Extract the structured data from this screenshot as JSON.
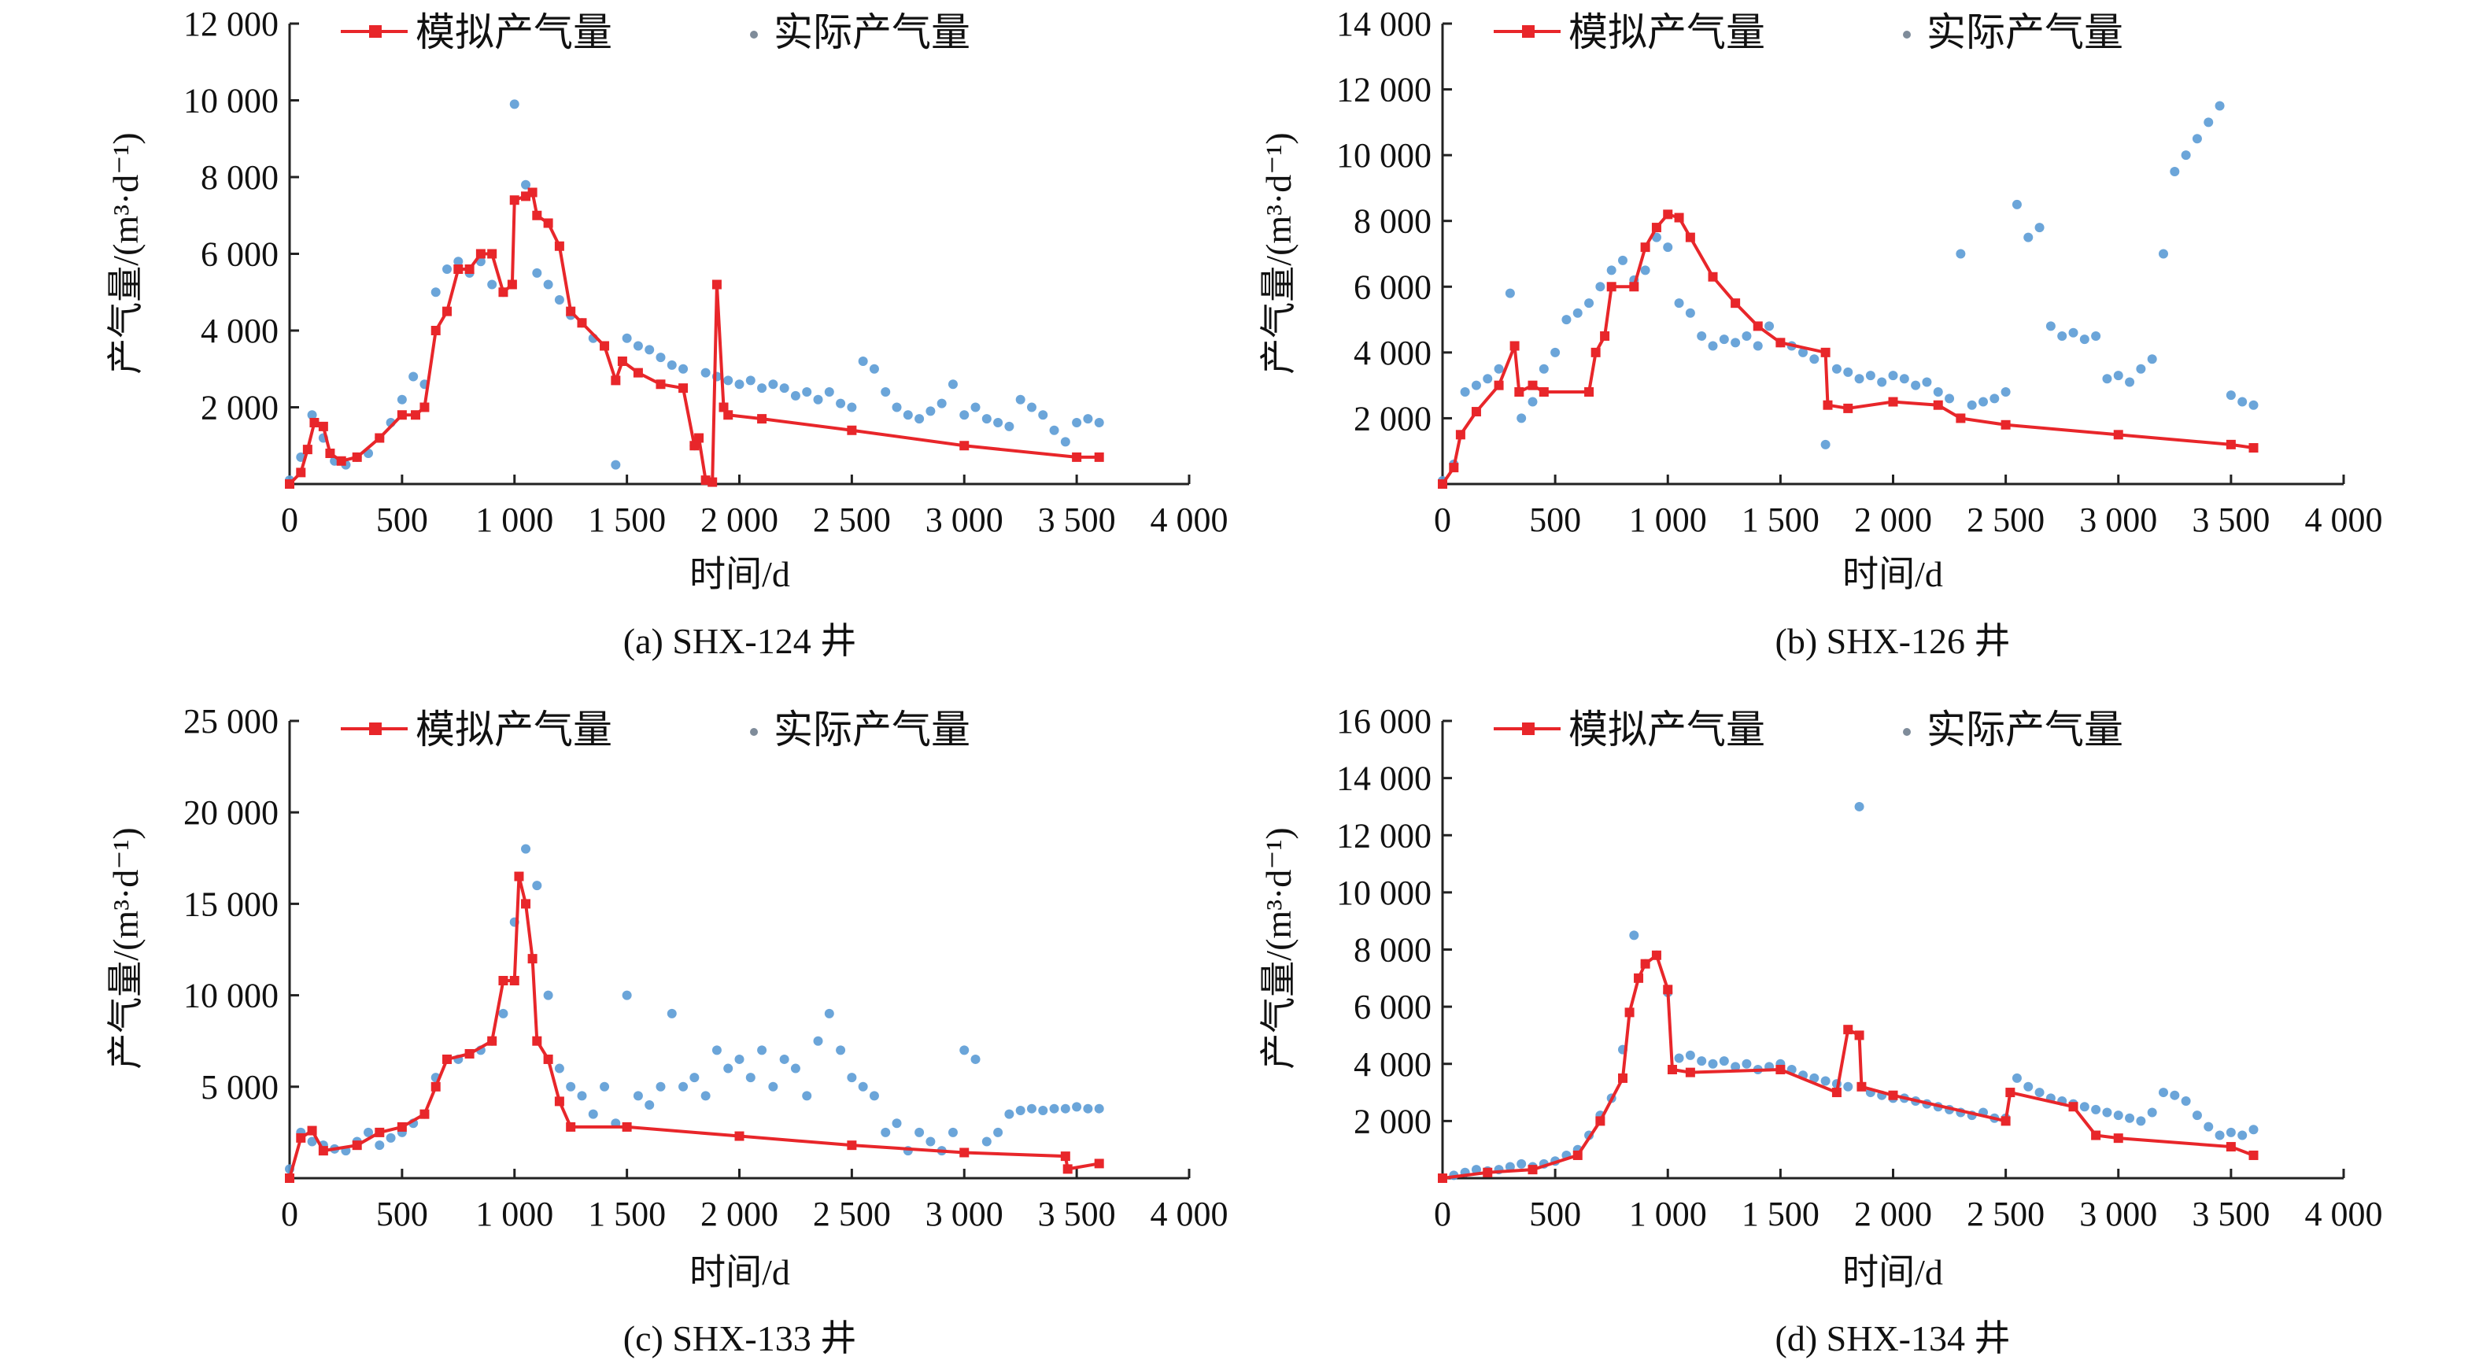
{
  "colors": {
    "simulated": "#e8262a",
    "actual": "#5b9bd5",
    "axis": "#222222"
  },
  "legend": {
    "simulated": "模拟产气量",
    "actual": "实际产气量"
  },
  "chart_data": [
    {
      "type": "line",
      "title": "(a) SHX-124 井",
      "xlabel": "时间/d",
      "ylabel": "产气量/(m³·d⁻¹)",
      "xlim": [
        0,
        4000
      ],
      "ylim": [
        0,
        12000
      ],
      "xticks": [
        "0",
        "500",
        "1 000",
        "1 500",
        "2 000",
        "2 500",
        "3 000",
        "3 500",
        "4 000"
      ],
      "yticks": [
        "2 000",
        "4 000",
        "6 000",
        "8 000",
        "10 000",
        "12 000"
      ],
      "ytick_values": [
        2000,
        4000,
        6000,
        8000,
        10000,
        12000
      ],
      "simulated": [
        [
          0,
          0
        ],
        [
          50,
          300
        ],
        [
          80,
          900
        ],
        [
          110,
          1600
        ],
        [
          150,
          1500
        ],
        [
          180,
          800
        ],
        [
          230,
          600
        ],
        [
          300,
          700
        ],
        [
          400,
          1200
        ],
        [
          500,
          1800
        ],
        [
          560,
          1800
        ],
        [
          600,
          2000
        ],
        [
          650,
          4000
        ],
        [
          700,
          4500
        ],
        [
          750,
          5600
        ],
        [
          800,
          5600
        ],
        [
          850,
          6000
        ],
        [
          900,
          6000
        ],
        [
          950,
          5000
        ],
        [
          990,
          5200
        ],
        [
          1000,
          7400
        ],
        [
          1050,
          7500
        ],
        [
          1080,
          7600
        ],
        [
          1100,
          7000
        ],
        [
          1150,
          6800
        ],
        [
          1200,
          6200
        ],
        [
          1250,
          4500
        ],
        [
          1300,
          4200
        ],
        [
          1400,
          3600
        ],
        [
          1450,
          2700
        ],
        [
          1480,
          3200
        ],
        [
          1550,
          2900
        ],
        [
          1650,
          2600
        ],
        [
          1750,
          2500
        ],
        [
          1800,
          1000
        ],
        [
          1820,
          1200
        ],
        [
          1850,
          100
        ],
        [
          1880,
          50
        ],
        [
          1900,
          5200
        ],
        [
          1930,
          2000
        ],
        [
          1950,
          1800
        ],
        [
          2100,
          1700
        ],
        [
          2500,
          1400
        ],
        [
          3000,
          1000
        ],
        [
          3500,
          700
        ],
        [
          3600,
          700
        ]
      ],
      "actual_x_step": 50,
      "actual": [
        100,
        700,
        1800,
        1200,
        600,
        500,
        700,
        800,
        1200,
        1600,
        2200,
        2800,
        2600,
        5000,
        5600,
        5800,
        5500,
        5800,
        5200,
        5000,
        9900,
        7800,
        5500,
        5200,
        4800,
        4400,
        4200,
        3800,
        3600,
        500,
        3800,
        3600,
        3500,
        3300,
        3100,
        3000,
        1000,
        2900,
        2800,
        2700,
        2600,
        2700,
        2500,
        2600,
        2500,
        2300,
        2400,
        2200,
        2400,
        2100,
        2000,
        3200,
        3000,
        2400,
        2000,
        1800,
        1700,
        1900,
        2100,
        2600,
        1800,
        2000,
        1700,
        1600,
        1500,
        2200,
        2000,
        1800,
        1400,
        1100,
        1600,
        1700,
        1600
      ]
    },
    {
      "type": "line",
      "title": "(b) SHX-126 井",
      "xlabel": "时间/d",
      "ylabel": "产气量/(m³·d⁻¹)",
      "xlim": [
        0,
        4000
      ],
      "ylim": [
        0,
        14000
      ],
      "xticks": [
        "0",
        "500",
        "1 000",
        "1 500",
        "2 000",
        "2 500",
        "3 000",
        "3 500",
        "4 000"
      ],
      "yticks": [
        "2 000",
        "4 000",
        "6 000",
        "8 000",
        "10 000",
        "12 000",
        "14 000"
      ],
      "ytick_values": [
        2000,
        4000,
        6000,
        8000,
        10000,
        12000,
        14000
      ],
      "simulated": [
        [
          0,
          0
        ],
        [
          50,
          500
        ],
        [
          80,
          1500
        ],
        [
          150,
          2200
        ],
        [
          250,
          3000
        ],
        [
          320,
          4200
        ],
        [
          340,
          2800
        ],
        [
          400,
          3000
        ],
        [
          450,
          2800
        ],
        [
          650,
          2800
        ],
        [
          680,
          4000
        ],
        [
          720,
          4500
        ],
        [
          750,
          6000
        ],
        [
          850,
          6000
        ],
        [
          900,
          7200
        ],
        [
          950,
          7800
        ],
        [
          1000,
          8200
        ],
        [
          1050,
          8100
        ],
        [
          1100,
          7500
        ],
        [
          1200,
          6300
        ],
        [
          1300,
          5500
        ],
        [
          1400,
          4800
        ],
        [
          1500,
          4300
        ],
        [
          1700,
          4000
        ],
        [
          1710,
          2400
        ],
        [
          1800,
          2300
        ],
        [
          2000,
          2500
        ],
        [
          2200,
          2400
        ],
        [
          2300,
          2000
        ],
        [
          2500,
          1800
        ],
        [
          3000,
          1500
        ],
        [
          3500,
          1200
        ],
        [
          3600,
          1100
        ]
      ],
      "actual_x_step": 50,
      "actual": [
        100,
        600,
        2800,
        3000,
        3200,
        3500,
        5800,
        2000,
        2500,
        3500,
        4000,
        5000,
        5200,
        5500,
        6000,
        6500,
        6800,
        6200,
        6500,
        7500,
        7200,
        5500,
        5200,
        4500,
        4200,
        4400,
        4300,
        4500,
        4200,
        4800,
        4300,
        4200,
        4000,
        3800,
        1200,
        3500,
        3400,
        3200,
        3300,
        3100,
        3300,
        3200,
        3000,
        3100,
        2800,
        2600,
        7000,
        2400,
        2500,
        2600,
        2800,
        8500,
        7500,
        7800,
        4800,
        4500,
        4600,
        4400,
        4500,
        3200,
        3300,
        3100,
        3500,
        3800,
        7000,
        9500,
        10000,
        10500,
        11000,
        11500,
        2700,
        2500,
        2400
      ]
    },
    {
      "type": "line",
      "title": "(c) SHX-133 井",
      "xlabel": "时间/d",
      "ylabel": "产气量/(m³·d⁻¹)",
      "xlim": [
        0,
        4000
      ],
      "ylim": [
        0,
        25000
      ],
      "xticks": [
        "0",
        "500",
        "1 000",
        "1 500",
        "2 000",
        "2 500",
        "3 000",
        "3 500",
        "4 000"
      ],
      "yticks": [
        "5 000",
        "10 000",
        "15 000",
        "20 000",
        "25 000"
      ],
      "ytick_values": [
        5000,
        10000,
        15000,
        20000,
        25000
      ],
      "simulated": [
        [
          0,
          0
        ],
        [
          50,
          2200
        ],
        [
          100,
          2600
        ],
        [
          150,
          1500
        ],
        [
          300,
          1800
        ],
        [
          400,
          2500
        ],
        [
          500,
          2800
        ],
        [
          600,
          3500
        ],
        [
          650,
          5000
        ],
        [
          700,
          6500
        ],
        [
          800,
          6800
        ],
        [
          900,
          7500
        ],
        [
          950,
          10800
        ],
        [
          1000,
          10800
        ],
        [
          1020,
          16500
        ],
        [
          1050,
          15000
        ],
        [
          1080,
          12000
        ],
        [
          1100,
          7500
        ],
        [
          1150,
          6500
        ],
        [
          1200,
          4200
        ],
        [
          1250,
          2800
        ],
        [
          1500,
          2800
        ],
        [
          2000,
          2300
        ],
        [
          2500,
          1800
        ],
        [
          3000,
          1400
        ],
        [
          3450,
          1200
        ],
        [
          3460,
          500
        ],
        [
          3600,
          800
        ]
      ],
      "actual_x_step": 50,
      "actual": [
        500,
        2500,
        2000,
        1800,
        1600,
        1500,
        2000,
        2500,
        1800,
        2200,
        2500,
        3000,
        3500,
        5500,
        6500,
        6500,
        6800,
        7000,
        7500,
        9000,
        14000,
        18000,
        16000,
        10000,
        6000,
        5000,
        4500,
        3500,
        5000,
        3000,
        10000,
        4500,
        4000,
        5000,
        9000,
        5000,
        5500,
        4500,
        7000,
        6000,
        6500,
        5500,
        7000,
        5000,
        6500,
        6000,
        4500,
        7500,
        9000,
        7000,
        5500,
        5000,
        4500,
        2500,
        3000,
        1500,
        2500,
        2000,
        1500,
        2500,
        7000,
        6500,
        2000,
        2500,
        3500,
        3700,
        3800,
        3700,
        3800,
        3800,
        3900,
        3800,
        3800
      ]
    },
    {
      "type": "line",
      "title": "(d) SHX-134 井",
      "xlabel": "时间/d",
      "ylabel": "产气量/(m³·d⁻¹)",
      "xlim": [
        0,
        4000
      ],
      "ylim": [
        0,
        16000
      ],
      "xticks": [
        "0",
        "500",
        "1 000",
        "1 500",
        "2 000",
        "2 500",
        "3 000",
        "3 500",
        "4 000"
      ],
      "yticks": [
        "2 000",
        "4 000",
        "6 000",
        "8 000",
        "10 000",
        "12 000",
        "14 000",
        "16 000"
      ],
      "ytick_values": [
        2000,
        4000,
        6000,
        8000,
        10000,
        12000,
        14000,
        16000
      ],
      "simulated": [
        [
          0,
          0
        ],
        [
          200,
          200
        ],
        [
          400,
          300
        ],
        [
          600,
          800
        ],
        [
          700,
          2000
        ],
        [
          800,
          3500
        ],
        [
          830,
          5800
        ],
        [
          870,
          7000
        ],
        [
          900,
          7500
        ],
        [
          950,
          7800
        ],
        [
          1000,
          6600
        ],
        [
          1020,
          3800
        ],
        [
          1100,
          3700
        ],
        [
          1500,
          3800
        ],
        [
          1750,
          3000
        ],
        [
          1800,
          5200
        ],
        [
          1850,
          5000
        ],
        [
          1860,
          3200
        ],
        [
          2000,
          2900
        ],
        [
          2500,
          2000
        ],
        [
          2520,
          3000
        ],
        [
          2800,
          2500
        ],
        [
          2900,
          1500
        ],
        [
          3000,
          1400
        ],
        [
          3500,
          1100
        ],
        [
          3600,
          800
        ]
      ],
      "actual_x_step": 50,
      "actual": [
        0,
        100,
        200,
        300,
        250,
        300,
        400,
        500,
        400,
        500,
        600,
        800,
        1000,
        1500,
        2200,
        2800,
        4500,
        8500,
        7500,
        7800,
        6500,
        4200,
        4300,
        4100,
        4000,
        4100,
        3900,
        4000,
        3800,
        3900,
        4000,
        3800,
        3600,
        3500,
        3400,
        3300,
        3200,
        13000,
        3000,
        2900,
        2800,
        2800,
        2700,
        2600,
        2500,
        2400,
        2300,
        2200,
        2300,
        2100,
        2100,
        3500,
        3200,
        3000,
        2800,
        2700,
        2600,
        2500,
        2400,
        2300,
        2200,
        2100,
        2000,
        2300,
        3000,
        2900,
        2700,
        2200,
        1800,
        1500,
        1600,
        1500,
        1700
      ]
    }
  ]
}
